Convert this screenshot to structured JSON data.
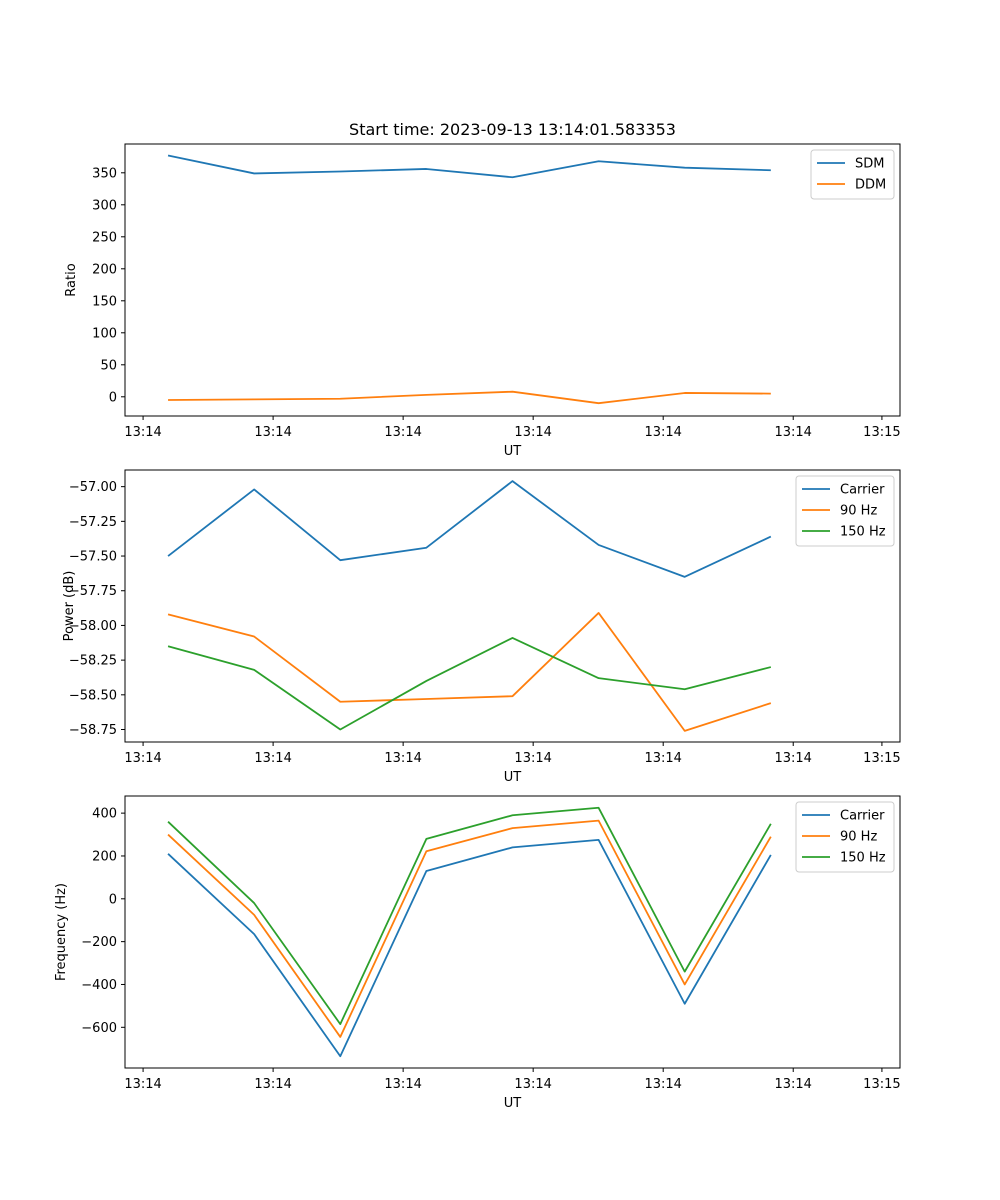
{
  "figure": {
    "title": "Start time: 2023-09-13 13:14:01.583353"
  },
  "chart_data": [
    {
      "type": "line",
      "title": "Start time: 2023-09-13 13:14:01.583353",
      "xlabel": "UT",
      "ylabel": "Ratio",
      "x": [
        1,
        2,
        3,
        4,
        5,
        6,
        7,
        8
      ],
      "xlim": [
        0.5,
        9.5
      ],
      "xticks": [
        0.71,
        2.22,
        3.73,
        5.24,
        6.75,
        8.26,
        9.29
      ],
      "xtick_labels": [
        "13:14",
        "13:14",
        "13:14",
        "13:14",
        "13:14",
        "13:14",
        "13:15"
      ],
      "ylim": [
        -30,
        395
      ],
      "yticks": [
        0,
        50,
        100,
        150,
        200,
        250,
        300,
        350
      ],
      "ytick_labels": [
        "0",
        "50",
        "100",
        "150",
        "200",
        "250",
        "300",
        "350"
      ],
      "legend_position": "top-right",
      "series": [
        {
          "name": "SDM",
          "color": "#1f77b4",
          "values": [
            377,
            349,
            352,
            356,
            343,
            368,
            358,
            354
          ]
        },
        {
          "name": "DDM",
          "color": "#ff7f0e",
          "values": [
            -5,
            -4,
            -3,
            3,
            8,
            -10,
            6,
            5
          ]
        }
      ]
    },
    {
      "type": "line",
      "title": "",
      "xlabel": "UT",
      "ylabel": "Power (dB)",
      "x": [
        1,
        2,
        3,
        4,
        5,
        6,
        7,
        8
      ],
      "xlim": [
        0.5,
        9.5
      ],
      "xticks": [
        0.71,
        2.22,
        3.73,
        5.24,
        6.75,
        8.26,
        9.29
      ],
      "xtick_labels": [
        "13:14",
        "13:14",
        "13:14",
        "13:14",
        "13:14",
        "13:14",
        "13:15"
      ],
      "ylim": [
        -58.84,
        -56.88
      ],
      "yticks": [
        -57.0,
        -57.25,
        -57.5,
        -57.75,
        -58.0,
        -58.25,
        -58.5,
        -58.75
      ],
      "ytick_labels": [
        "−57.00",
        "−57.25",
        "−57.50",
        "−57.75",
        "−58.00",
        "−58.25",
        "−58.50",
        "−58.75"
      ],
      "legend_position": "top-right",
      "series": [
        {
          "name": "Carrier",
          "color": "#1f77b4",
          "values": [
            -57.5,
            -57.02,
            -57.53,
            -57.44,
            -56.96,
            -57.42,
            -57.65,
            -57.36
          ]
        },
        {
          "name": "90 Hz",
          "color": "#ff7f0e",
          "values": [
            -57.92,
            -58.08,
            -58.55,
            -58.53,
            -58.51,
            -57.91,
            -58.76,
            -58.56
          ]
        },
        {
          "name": "150 Hz",
          "color": "#2ca02c",
          "values": [
            -58.15,
            -58.32,
            -58.75,
            -58.4,
            -58.09,
            -58.38,
            -58.46,
            -58.3
          ]
        }
      ]
    },
    {
      "type": "line",
      "title": "",
      "xlabel": "UT",
      "ylabel": "Frequency (Hz)",
      "x": [
        1,
        2,
        3,
        4,
        5,
        6,
        7,
        8
      ],
      "xlim": [
        0.5,
        9.5
      ],
      "xticks": [
        0.71,
        2.22,
        3.73,
        5.24,
        6.75,
        8.26,
        9.29
      ],
      "xtick_labels": [
        "13:14",
        "13:14",
        "13:14",
        "13:14",
        "13:14",
        "13:14",
        "13:15"
      ],
      "ylim": [
        -790,
        480
      ],
      "yticks": [
        400,
        200,
        0,
        -200,
        -400,
        -600
      ],
      "ytick_labels": [
        "400",
        "200",
        "0",
        "−200",
        "−400",
        "−600"
      ],
      "legend_position": "top-right",
      "series": [
        {
          "name": "Carrier",
          "color": "#1f77b4",
          "values": [
            210,
            -165,
            -735,
            130,
            240,
            275,
            -490,
            205
          ]
        },
        {
          "name": "90 Hz",
          "color": "#ff7f0e",
          "values": [
            300,
            -75,
            -645,
            222,
            330,
            365,
            -400,
            290
          ]
        },
        {
          "name": "150 Hz",
          "color": "#2ca02c",
          "values": [
            360,
            -20,
            -585,
            280,
            390,
            425,
            -340,
            350
          ]
        }
      ]
    }
  ]
}
